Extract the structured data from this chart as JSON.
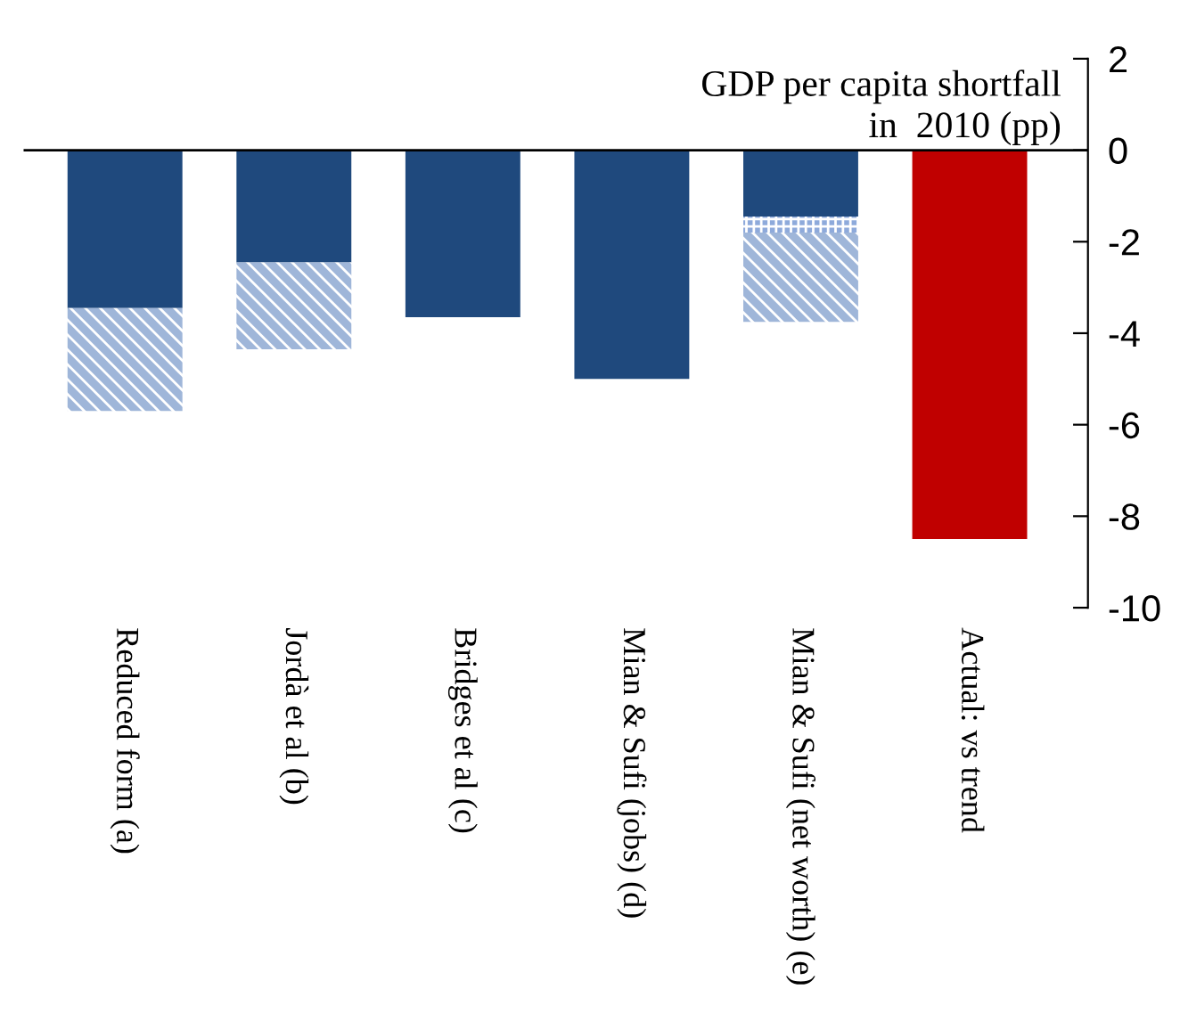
{
  "chart_data": {
    "type": "bar",
    "title": "GDP per capita shortfall\n in  2010 (pp)",
    "categories": [
      "Reduced form (a)",
      "Jordà et al (b)",
      "Bridges et al (c)",
      "Mian & Sufi (jobs) (d)",
      "Mian & Sufi (net worth) (e)",
      "Actual: vs trend"
    ],
    "stacked": true,
    "series": [
      {
        "colors": [
          "#1f497d",
          "#1f497d",
          "#1f497d",
          "#1f497d",
          "#1f497d",
          "#c00000"
        ],
        "values": [
          -3.45,
          -2.45,
          -3.65,
          -5.0,
          -1.45,
          -8.5
        ]
      },
      {
        "color": "#8eaadb",
        "values": [
          null,
          null,
          null,
          null,
          -0.35,
          null
        ]
      },
      {
        "color": "#9fb6d9",
        "values": [
          -2.25,
          -1.9,
          null,
          null,
          -1.95,
          null
        ]
      }
    ],
    "ylim": [
      -10,
      2
    ],
    "yticks": [
      -10,
      -8,
      -6,
      -4,
      -2,
      0,
      2
    ],
    "ref_lines": [
      {
        "axis": "y",
        "value": 0,
        "color": "#000000"
      }
    ],
    "grid": false,
    "legend": false
  }
}
